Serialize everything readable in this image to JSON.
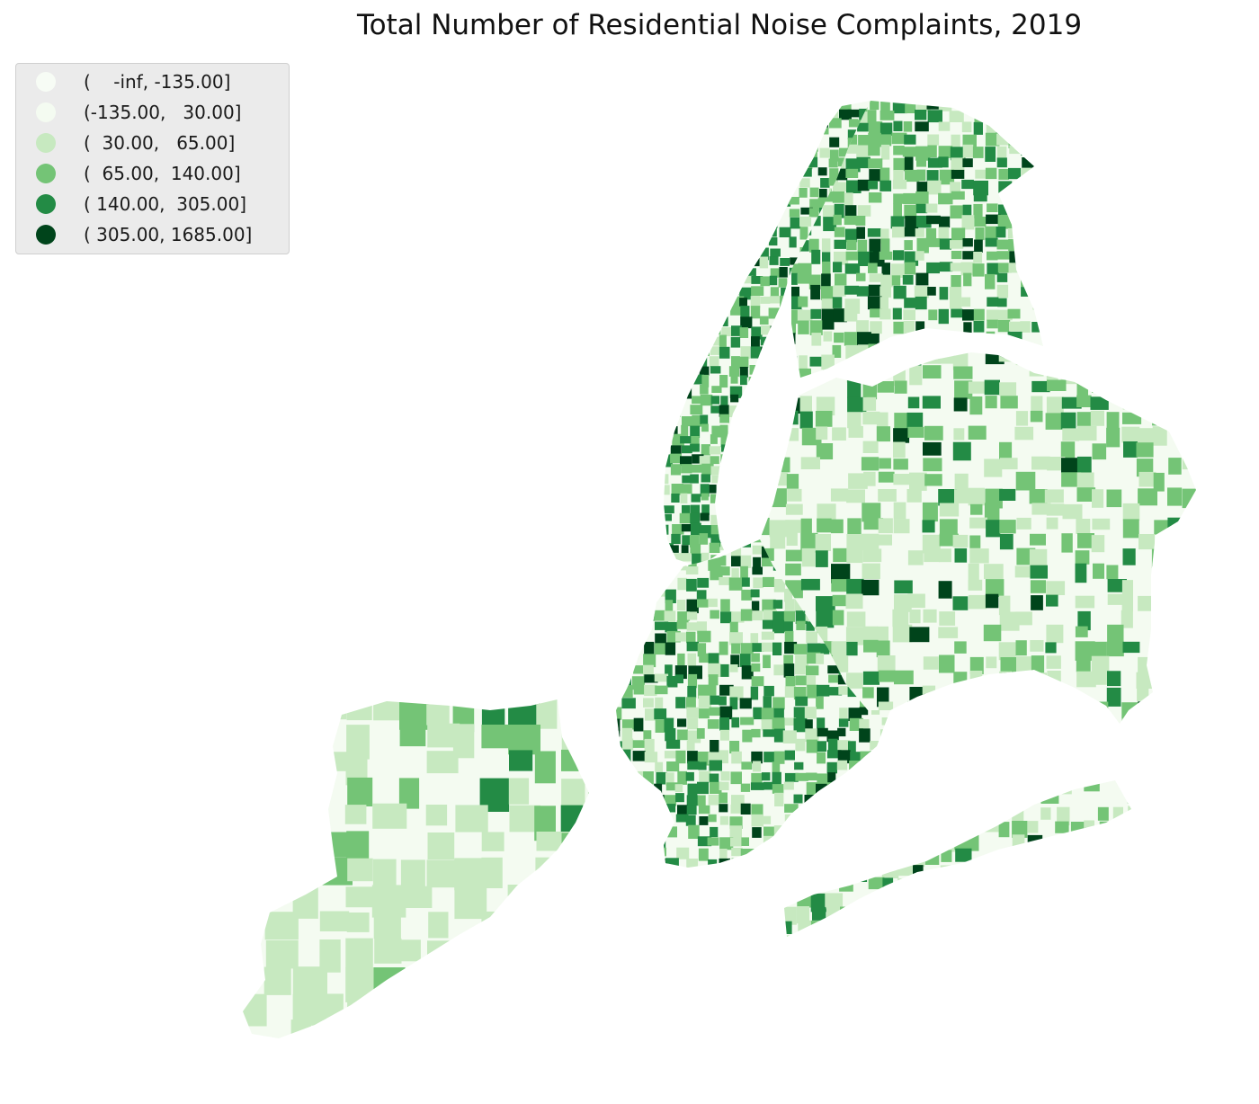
{
  "title": "Total Number of Residential Noise Complaints, 2019",
  "legend": {
    "items": [
      {
        "label": "(    -inf, -135.00]",
        "color": "#f7fcf5"
      },
      {
        "label": "(-135.00,   30.00]",
        "color": "#f4fbf1"
      },
      {
        "label": "(  30.00,   65.00]",
        "color": "#c7e9c0"
      },
      {
        "label": "(  65.00,  140.00]",
        "color": "#74c476"
      },
      {
        "label": "( 140.00,  305.00]",
        "color": "#238b45"
      },
      {
        "label": "( 305.00, 1685.00]",
        "color": "#00441b"
      }
    ]
  }
}
